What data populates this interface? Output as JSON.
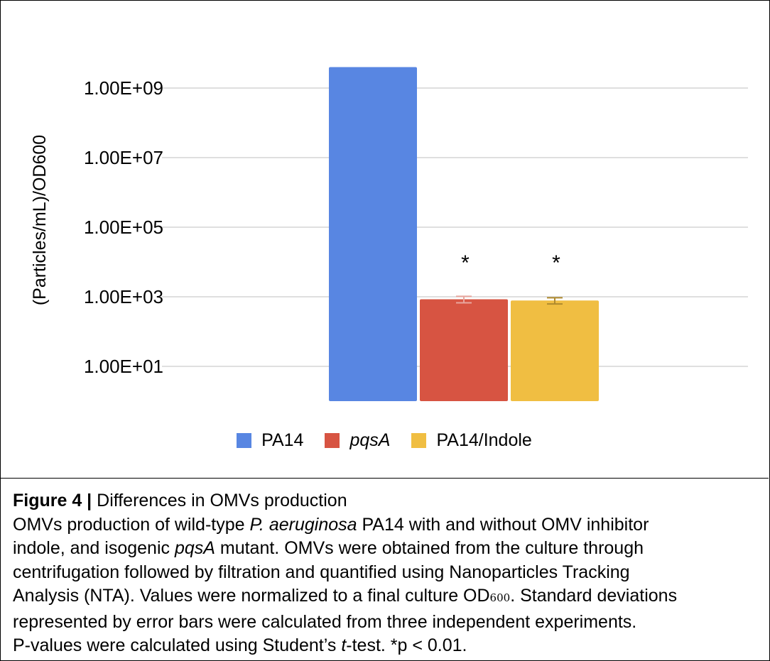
{
  "chart_data": {
    "type": "bar",
    "ylabel": "(Particles/mL)/OD600",
    "yscale": "log",
    "ylim": [
      1,
      100000000000
    ],
    "yticks": [
      10,
      1000,
      100000,
      10000000,
      1000000000
    ],
    "ytick_labels": [
      "1.00E+01",
      "1.00E+03",
      "1.00E+05",
      "1.00E+07",
      "1.00E+09"
    ],
    "grid": true,
    "legend_position": "bottom",
    "categories": [
      "PA14",
      "pqsA",
      "PA14/Indole"
    ],
    "series": [
      {
        "name": "PA14",
        "value": 4000000000,
        "error": null,
        "color": "#5886E2",
        "annotation": ""
      },
      {
        "name": "pqsA",
        "value": 850,
        "error": 180,
        "color": "#D75442",
        "annotation": "*"
      },
      {
        "name": "PA14/Indole",
        "value": 780,
        "error": 160,
        "color": "#F0BE42",
        "annotation": "*"
      }
    ],
    "error_colors": [
      "#E8A69E",
      "#B08A2E"
    ]
  },
  "legend": {
    "items": [
      {
        "label": "PA14",
        "color": "#5886E2",
        "italic": false
      },
      {
        "label": "pqsA",
        "color": "#D75442",
        "italic": true
      },
      {
        "label": "PA14/Indole",
        "color": "#F0BE42",
        "italic": false
      }
    ]
  },
  "caption": {
    "title_bold": "Figure 4 |",
    "title_rest": " Differences in OMVs production",
    "l2_a": "OMVs production of wild-type ",
    "l2_i": "P. aeruginosa",
    "l2_b": " PA14 with and without OMV inhibitor",
    "l3_a": "indole, and isogenic ",
    "l3_i": "pqsA",
    "l3_b": " mutant. OMVs were obtained from the culture through",
    "l4": "centrifugation followed by filtration and quantified using Nanoparticles Tracking",
    "l5_a": "Analysis (NTA). Values were normalized to a final culture OD",
    "l5_sub": "600",
    "l5_b": ". Standard deviations",
    "l6": "represented by error bars were calculated from three independent experiments.",
    "l7_a": "P-values were calculated using Student’s ",
    "l7_i": "t",
    "l7_b": "-test. *p < 0.01."
  }
}
